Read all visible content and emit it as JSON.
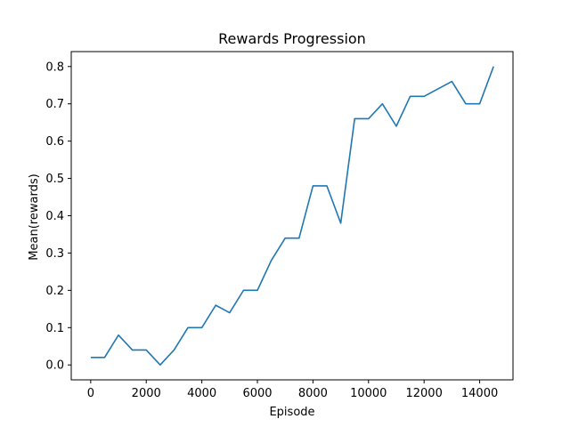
{
  "chart_data": {
    "type": "line",
    "title": "Rewards Progression",
    "xlabel": "Episode",
    "ylabel": "Mean(rewards)",
    "xlim": [
      -700,
      15200
    ],
    "ylim": [
      -0.04,
      0.84
    ],
    "xticks": [
      0,
      2000,
      4000,
      6000,
      8000,
      10000,
      12000,
      14000
    ],
    "yticks": [
      0.0,
      0.1,
      0.2,
      0.3,
      0.4,
      0.5,
      0.6,
      0.7,
      0.8
    ],
    "ytick_labels": [
      "0.0",
      "0.1",
      "0.2",
      "0.3",
      "0.4",
      "0.5",
      "0.6",
      "0.7",
      "0.8"
    ],
    "grid": false,
    "series": [
      {
        "color": "#1f77b4",
        "x": [
          0,
          500,
          1000,
          1500,
          2000,
          2500,
          3000,
          3500,
          4000,
          4500,
          5000,
          5500,
          6000,
          6500,
          7000,
          7500,
          8000,
          8500,
          9000,
          9500,
          10000,
          10500,
          11000,
          11500,
          12000,
          12500,
          13000,
          13500,
          14000,
          14500
        ],
        "y": [
          0.02,
          0.02,
          0.08,
          0.04,
          0.04,
          0.0,
          0.04,
          0.1,
          0.1,
          0.16,
          0.14,
          0.2,
          0.2,
          0.28,
          0.34,
          0.34,
          0.48,
          0.48,
          0.38,
          0.66,
          0.66,
          0.7,
          0.64,
          0.72,
          0.72,
          0.74,
          0.76,
          0.7,
          0.7,
          0.8
        ]
      }
    ]
  }
}
